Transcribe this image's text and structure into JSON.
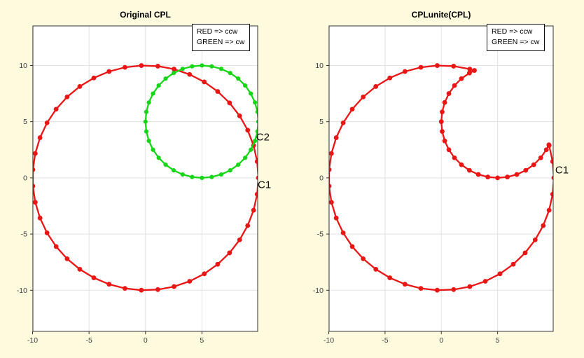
{
  "figure": {
    "background": "#fdfade",
    "plot_background": "#ffffff",
    "grid_color": "#e2e2e2",
    "frame_color": "#333333",
    "tick_label_color": "#3d3d3d"
  },
  "colors": {
    "red": "#ea1515",
    "green": "#17d517"
  },
  "chart_data": [
    {
      "type": "line",
      "title": "Original CPL",
      "xlim": [
        -9.97,
        9.94
      ],
      "ylim": [
        -13.66,
        13.52
      ],
      "x_ticks": [
        -10,
        -5,
        0,
        5
      ],
      "y_ticks": [
        -10,
        -5,
        0,
        5,
        10
      ],
      "grid": true,
      "legend": {
        "lines": [
          "RED => ccw",
          "GREEN => cw"
        ],
        "position": "top-right"
      },
      "series": [
        {
          "name": "C1",
          "kind": "circle",
          "center": [
            0,
            0
          ],
          "radius": 10,
          "n_points": 43,
          "direction": "ccw",
          "color": "#ea1515"
        },
        {
          "name": "C2",
          "kind": "circle",
          "center": [
            5,
            5
          ],
          "radius": 5,
          "n_points": 36,
          "direction": "cw",
          "color": "#17d517"
        }
      ],
      "annotations": [
        {
          "text": "C2",
          "x": 9.8,
          "y": 3.6
        },
        {
          "text": "C1",
          "x": 9.94,
          "y": -0.62
        }
      ]
    },
    {
      "type": "line",
      "title": "CPLunite(CPL)",
      "xlim": [
        -9.97,
        9.94
      ],
      "ylim": [
        -13.66,
        13.52
      ],
      "x_ticks": [
        -10,
        -5,
        0,
        5
      ],
      "y_ticks": [
        -10,
        -5,
        0,
        5,
        10
      ],
      "grid": true,
      "legend": {
        "lines": [
          "RED => ccw",
          "GREEN => cw"
        ],
        "position": "top-right"
      },
      "series": [
        {
          "name": "C1",
          "kind": "circle-with-hole-united",
          "outer": {
            "center": [
              0,
              0
            ],
            "radius": 10,
            "n_points": 43
          },
          "inner": {
            "center": [
              5,
              5
            ],
            "radius": 5,
            "n_points": 36
          },
          "color": "#ea1515"
        }
      ],
      "annotations": [
        {
          "text": "C1",
          "x": 10.12,
          "y": 0.69
        }
      ]
    }
  ]
}
